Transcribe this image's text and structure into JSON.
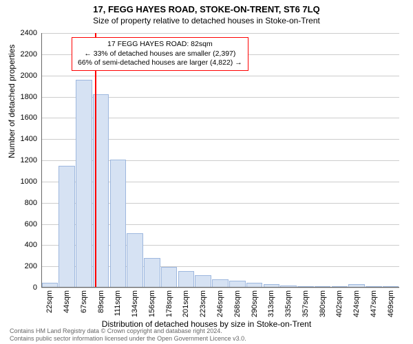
{
  "title_main": "17, FEGG HAYES ROAD, STOKE-ON-TRENT, ST6 7LQ",
  "title_sub": "Size of property relative to detached houses in Stoke-on-Trent",
  "x_axis_label": "Distribution of detached houses by size in Stoke-on-Trent",
  "y_axis_label": "Number of detached properties",
  "footer_line1": "Contains HM Land Registry data © Crown copyright and database right 2024.",
  "footer_line2": "Contains public sector information licensed under the Open Government Licence v3.0.",
  "footer_color": "#666666",
  "chart": {
    "type": "bar",
    "background_color": "#ffffff",
    "grid_color": "#cccccc",
    "axis_color": "#666666",
    "bar_fill": "#d6e2f3",
    "bar_stroke": "#9db7de",
    "refline_color": "#ff0000",
    "annot_border_color": "#ff0000",
    "ylim": [
      0,
      2400
    ],
    "ytick_step": 200,
    "bar_width": 0.95,
    "x_categories_numeric": [
      22,
      44,
      67,
      89,
      111,
      134,
      156,
      178,
      201,
      223,
      246,
      268,
      290,
      313,
      335,
      357,
      380,
      402,
      424,
      447,
      469
    ],
    "x_tick_suffix": "sqm",
    "values": [
      45,
      1150,
      1960,
      1825,
      1205,
      510,
      280,
      195,
      155,
      115,
      75,
      65,
      45,
      30,
      20,
      15,
      12,
      10,
      35,
      8,
      6
    ],
    "reference_x": 82,
    "annotation": {
      "line1": "17 FEGG HAYES ROAD: 82sqm",
      "line2": "← 33% of detached houses are smaller (2,397)",
      "line3": "66% of semi-detached houses are larger (4,822) →"
    }
  }
}
